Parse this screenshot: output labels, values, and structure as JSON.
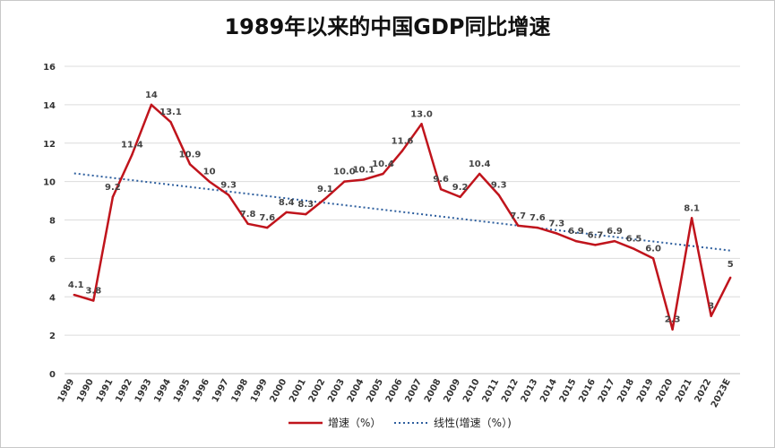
{
  "chart_data": {
    "type": "line",
    "title": "1989年以来的中国GDP同比增速",
    "xlabel": "",
    "ylabel": "",
    "ylim": [
      0,
      16
    ],
    "yticks": [
      0,
      2,
      4,
      6,
      8,
      10,
      12,
      14,
      16
    ],
    "grid": true,
    "legend_position": "bottom",
    "categories": [
      "1989",
      "1990",
      "1991",
      "1992",
      "1993",
      "1994",
      "1995",
      "1996",
      "1997",
      "1998",
      "1999",
      "2000",
      "2001",
      "2002",
      "2003",
      "2004",
      "2005",
      "2006",
      "2007",
      "2008",
      "2009",
      "2010",
      "2011",
      "2012",
      "2013",
      "2014",
      "2015",
      "2016",
      "2017",
      "2018",
      "2019",
      "2020",
      "2021",
      "2022",
      "2023E"
    ],
    "series": [
      {
        "name": "增速（%）",
        "color": "#c0141c",
        "values": [
          4.1,
          3.8,
          9.2,
          11.4,
          14,
          13.1,
          10.9,
          10,
          9.3,
          7.8,
          7.6,
          8.4,
          8.3,
          9.1,
          10.0,
          10.1,
          10.4,
          11.6,
          13.0,
          9.6,
          9.2,
          10.4,
          9.3,
          7.7,
          7.6,
          7.3,
          6.9,
          6.7,
          6.9,
          6.5,
          6.0,
          2.3,
          8.1,
          3,
          5
        ],
        "labels": [
          "4.1",
          "3.8",
          "9.2",
          "11.4",
          "14",
          "13.1",
          "10.9",
          "10",
          "9.3",
          "7.8",
          "7.6",
          "8.4",
          "8.3",
          "9.1",
          "10.0",
          "10.1",
          "10.4",
          "11.6",
          "13.0",
          "9.6",
          "9.2",
          "10.4",
          "9.3",
          "7.7",
          "7.6",
          "7.3",
          "6.9",
          "6.7",
          "6.9",
          "6.5",
          "6.0",
          "2.3",
          "8.1",
          "3",
          "5"
        ]
      },
      {
        "name": "线性(增速（%）)",
        "color": "#2e5f9e",
        "style": "dotted",
        "trendline": "linear"
      }
    ]
  }
}
